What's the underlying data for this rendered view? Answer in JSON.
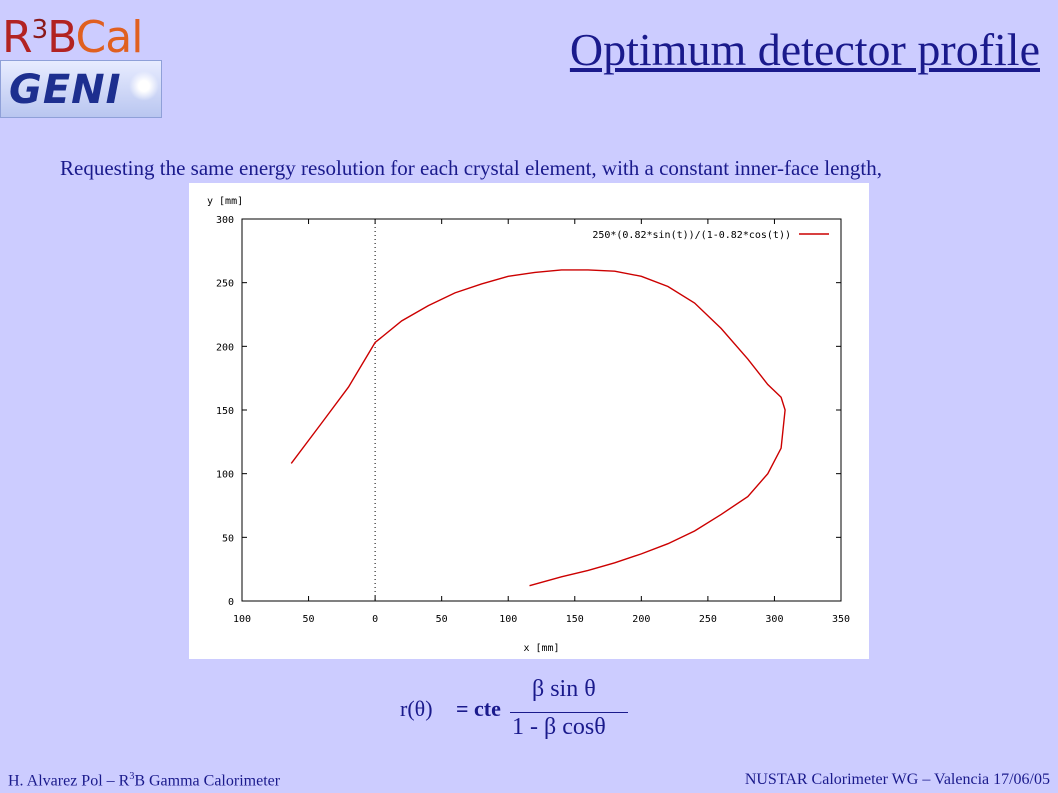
{
  "logo": {
    "r3b_prefix": "R",
    "r3b_sup": "3",
    "r3b_suffix": "B",
    "cal_text": "Cal",
    "geni_text": "GENI"
  },
  "slide": {
    "title": "Optimum detector profile",
    "body": "Requesting the same energy resolution for each crystal element, with a constant inner-face length,"
  },
  "formula": {
    "lhs": "r(θ)",
    "equals": "= cte",
    "numerator": "β sin θ",
    "denominator": "1 - β cosθ"
  },
  "footer": {
    "left_prefix": "H. Alvarez Pol – R",
    "left_sup": "3",
    "left_suffix": "B Gamma Calorimeter",
    "right": "NUSTAR Calorimeter WG – Valencia 17/06/05"
  },
  "chart_data": {
    "type": "line",
    "xlabel": "x [mm]",
    "ylabel": "y [mm]",
    "xlim": [
      -100,
      350
    ],
    "ylim": [
      0,
      300
    ],
    "xtick_labels": [
      "100",
      "50",
      "0",
      "50",
      "100",
      "150",
      "200",
      "250",
      "300",
      "350"
    ],
    "ytick_labels": [
      "0",
      "50",
      "100",
      "150",
      "200",
      "250",
      "300"
    ],
    "legend_position": "top-right",
    "grid": false,
    "zero_line": "dotted vertical at x=0",
    "series": [
      {
        "name": "250*(0.82*sin(t))/(1-0.82*cos(t))",
        "color": "#cc0000",
        "x": [
          -63,
          -40,
          -20,
          0,
          20,
          40,
          60,
          80,
          100,
          120,
          140,
          160,
          180,
          200,
          220,
          240,
          260,
          280,
          295,
          305,
          308,
          305,
          295,
          280,
          260,
          240,
          220,
          200,
          180,
          160,
          140,
          116
        ],
        "y": [
          108,
          140,
          168,
          203,
          220,
          232,
          242,
          249,
          255,
          258,
          260,
          260,
          259,
          255,
          247,
          234,
          214,
          190,
          170,
          160,
          150,
          120,
          100,
          82,
          68,
          55,
          45,
          37,
          30,
          24,
          19,
          12
        ]
      }
    ]
  }
}
